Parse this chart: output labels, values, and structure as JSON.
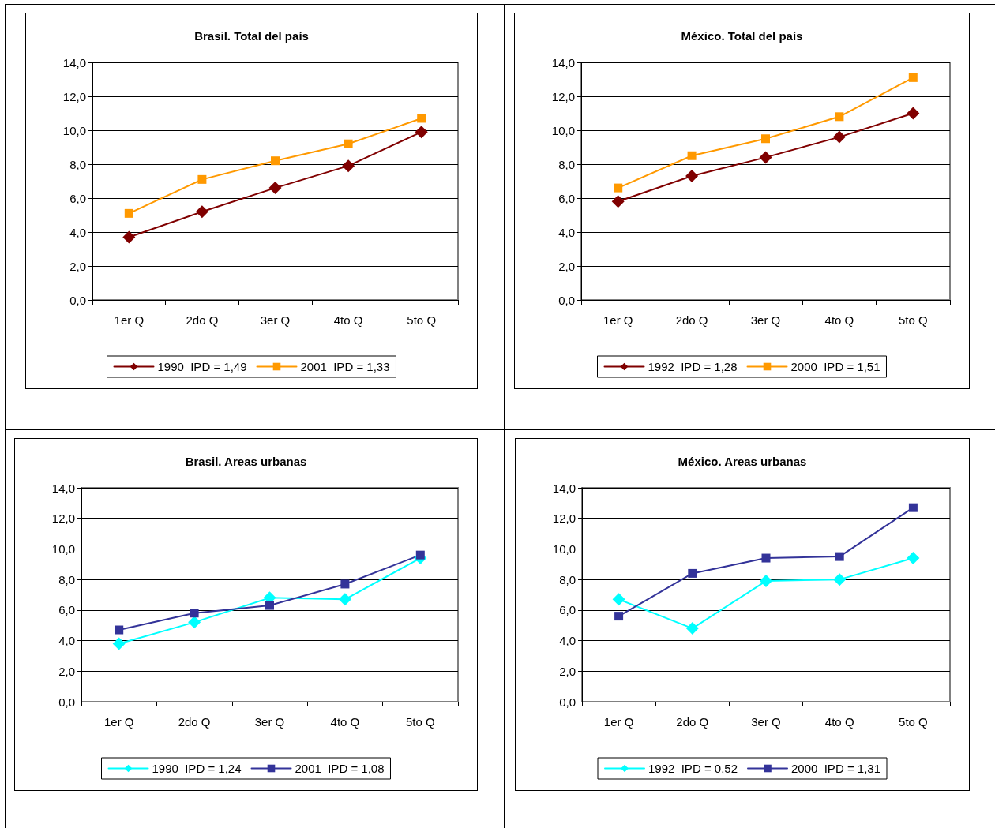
{
  "chart_data": [
    {
      "type": "line",
      "title": "Brasil. Total del país",
      "categories": [
        "1er Q",
        "2do Q",
        "3er Q",
        "4to Q",
        "5to Q"
      ],
      "series": [
        {
          "name": "1990  IPD = 1,49",
          "color": "#800000",
          "marker": "diamond",
          "values": [
            3.7,
            5.2,
            6.6,
            7.9,
            9.9
          ]
        },
        {
          "name": "2001  IPD = 1,33",
          "color": "#ff9900",
          "marker": "square",
          "values": [
            5.1,
            7.1,
            8.2,
            9.2,
            10.7
          ]
        }
      ],
      "ylim": [
        0,
        14
      ],
      "yticks": [
        {
          "value": 0,
          "label": "0,0"
        },
        {
          "value": 2,
          "label": "2,0"
        },
        {
          "value": 4,
          "label": "4,0"
        },
        {
          "value": 6,
          "label": "6,0"
        },
        {
          "value": 8,
          "label": "8,0"
        },
        {
          "value": 10,
          "label": "10,0"
        },
        {
          "value": 12,
          "label": "12,0"
        },
        {
          "value": 14,
          "label": "14,0"
        }
      ],
      "grid": "y",
      "legend": "bottom",
      "line_style": "solid"
    },
    {
      "type": "line",
      "title": "México. Total del país",
      "categories": [
        "1er Q",
        "2do Q",
        "3er Q",
        "4to Q",
        "5to Q"
      ],
      "series": [
        {
          "name": "1992  IPD = 1,28",
          "color": "#800000",
          "marker": "diamond",
          "values": [
            5.8,
            7.3,
            8.4,
            9.6,
            11.0
          ]
        },
        {
          "name": "2000  IPD = 1,51",
          "color": "#ff9900",
          "marker": "square",
          "values": [
            6.6,
            8.5,
            9.5,
            10.8,
            13.1
          ]
        }
      ],
      "ylim": [
        0,
        14
      ],
      "yticks": [
        {
          "value": 0,
          "label": "0,0"
        },
        {
          "value": 2,
          "label": "2,0"
        },
        {
          "value": 4,
          "label": "4,0"
        },
        {
          "value": 6,
          "label": "6,0"
        },
        {
          "value": 8,
          "label": "8,0"
        },
        {
          "value": 10,
          "label": "10,0"
        },
        {
          "value": 12,
          "label": "12,0"
        },
        {
          "value": 14,
          "label": "14,0"
        }
      ],
      "grid": "y",
      "legend": "bottom",
      "line_style": "solid"
    },
    {
      "type": "line",
      "title": "Brasil. Areas urbanas",
      "categories": [
        "1er Q",
        "2do Q",
        "3er Q",
        "4to Q",
        "5to Q"
      ],
      "series": [
        {
          "name": "1990  IPD = 1,24",
          "color": "#00ffff",
          "marker": "diamond",
          "values": [
            3.8,
            5.2,
            6.8,
            6.7,
            9.4
          ]
        },
        {
          "name": "2001  IPD = 1,08",
          "color": "#333399",
          "marker": "square",
          "values": [
            4.7,
            5.8,
            6.3,
            7.7,
            9.6
          ]
        }
      ],
      "ylim": [
        0,
        14
      ],
      "yticks": [
        {
          "value": 0,
          "label": "0,0"
        },
        {
          "value": 2,
          "label": "2,0"
        },
        {
          "value": 4,
          "label": "4,0"
        },
        {
          "value": 6,
          "label": "6,0"
        },
        {
          "value": 8,
          "label": "8,0"
        },
        {
          "value": 10,
          "label": "10,0"
        },
        {
          "value": 12,
          "label": "12,0"
        },
        {
          "value": 14,
          "label": "14,0"
        }
      ],
      "grid": "y",
      "legend": "bottom",
      "line_style": "solid"
    },
    {
      "type": "line",
      "title": "México. Areas urbanas",
      "categories": [
        "1er Q",
        "2do Q",
        "3er Q",
        "4to Q",
        "5to Q"
      ],
      "series": [
        {
          "name": "1992  IPD = 0,52",
          "color": "#00ffff",
          "marker": "diamond",
          "values": [
            6.7,
            4.8,
            7.9,
            8.0,
            9.4
          ]
        },
        {
          "name": "2000  IPD = 1,31",
          "color": "#333399",
          "marker": "square",
          "values": [
            5.6,
            8.4,
            9.4,
            9.5,
            12.7
          ]
        }
      ],
      "ylim": [
        0,
        14
      ],
      "yticks": [
        {
          "value": 0,
          "label": "0,0"
        },
        {
          "value": 2,
          "label": "2,0"
        },
        {
          "value": 4,
          "label": "4,0"
        },
        {
          "value": 6,
          "label": "6,0"
        },
        {
          "value": 8,
          "label": "8,0"
        },
        {
          "value": 10,
          "label": "10,0"
        },
        {
          "value": 12,
          "label": "12,0"
        },
        {
          "value": 14,
          "label": "14,0"
        }
      ],
      "grid": "y",
      "legend": "bottom",
      "line_style": "solid"
    }
  ]
}
